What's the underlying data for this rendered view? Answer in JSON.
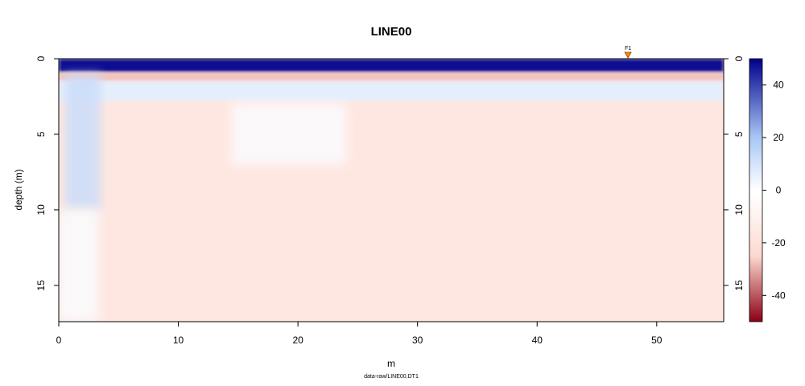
{
  "chart_data": {
    "type": "heatmap",
    "title": "LINE00",
    "subtitle": "data-raw/LINE00.DT1",
    "xlabel": "m",
    "ylabel": "depth (m)",
    "xlim": [
      0,
      55.6
    ],
    "ylim": [
      0,
      17.4
    ],
    "y_reversed": true,
    "x_ticks": [
      "0",
      "10",
      "20",
      "30",
      "40",
      "50"
    ],
    "y_ticks": [
      "0",
      "5",
      "10",
      "15"
    ],
    "fiducial": {
      "label": "F1",
      "x": 47.6,
      "color": "#ff8c00"
    },
    "colorbar": {
      "range": [
        -50,
        50
      ],
      "ticks": [
        "40",
        "20",
        "0",
        "-20",
        "-40"
      ],
      "low_color": "#8b0016",
      "mid_low_color": "#fdd9cf",
      "zero_color": "#ffffff",
      "mid_high_color": "#a9c7f5",
      "high_color": "#00008b"
    },
    "regions": [
      {
        "name": "near-surface strong positive band",
        "x": [
          0,
          55.6
        ],
        "depth": [
          0,
          0.9
        ],
        "value": 48
      },
      {
        "name": "shallow negative band",
        "x": [
          0,
          55.6
        ],
        "depth": [
          0.9,
          1.5
        ],
        "value": -12
      },
      {
        "name": "shallow mixed band",
        "x": [
          0,
          55.6
        ],
        "depth": [
          1.5,
          2.8
        ],
        "value": 6
      },
      {
        "name": "positive column",
        "x": [
          0.5,
          3.5
        ],
        "depth": [
          1.0,
          10.0
        ],
        "value": 12
      },
      {
        "name": "near-zero column",
        "x": [
          0,
          3.3
        ],
        "depth": [
          10,
          17.4
        ],
        "value": 1
      },
      {
        "name": "near-zero lens",
        "x": [
          14.5,
          24
        ],
        "depth": [
          3.0,
          7.0
        ],
        "value": 1
      },
      {
        "name": "background",
        "x": [
          0,
          55.6
        ],
        "depth": [
          0,
          17.4
        ],
        "value": -5
      }
    ]
  }
}
